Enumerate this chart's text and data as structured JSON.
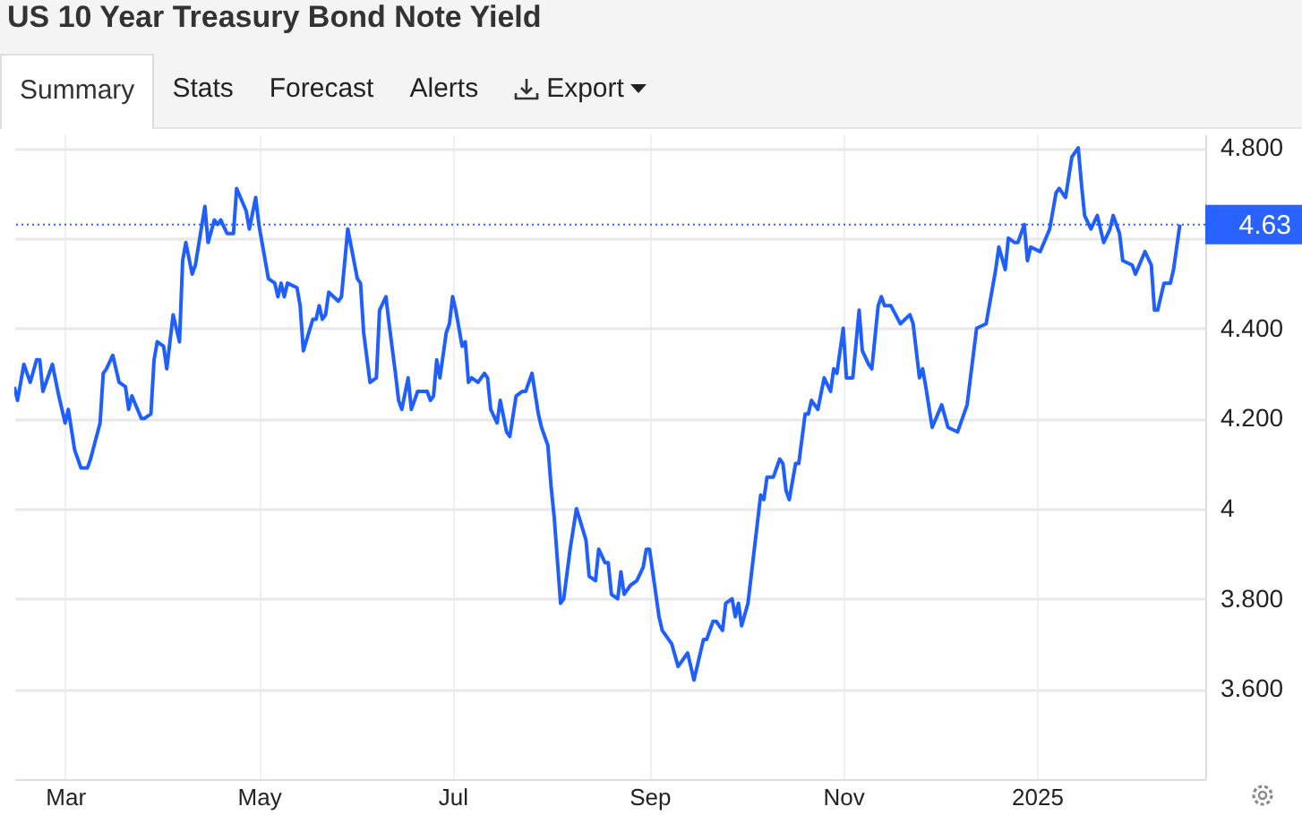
{
  "chart_data": {
    "type": "line",
    "title": "US 10 Year Treasury Bond Note Yield",
    "annotations": [
      "Summary",
      "Stats",
      "Forecast",
      "Alerts",
      "Export"
    ],
    "x": [
      "2024-02-14",
      "2024-02-15",
      "2024-02-17",
      "2024-02-19",
      "2024-02-21",
      "2024-02-22",
      "2024-02-23",
      "2024-02-26",
      "2024-02-28",
      "2024-03-01",
      "2024-03-02",
      "2024-03-04",
      "2024-03-06",
      "2024-03-08",
      "2024-03-09",
      "2024-03-12",
      "2024-03-13",
      "2024-03-14",
      "2024-03-16",
      "2024-03-18",
      "2024-03-20",
      "2024-03-21",
      "2024-03-22",
      "2024-03-25",
      "2024-03-26",
      "2024-03-28",
      "2024-03-29",
      "2024-03-30",
      "2024-04-01",
      "2024-04-02",
      "2024-04-04",
      "2024-04-06",
      "2024-04-07",
      "2024-04-08",
      "2024-04-10",
      "2024-04-11",
      "2024-04-14",
      "2024-04-15",
      "2024-04-17",
      "2024-04-18",
      "2024-04-19",
      "2024-04-21",
      "2024-04-23",
      "2024-04-24",
      "2024-04-27",
      "2024-04-28",
      "2024-04-30",
      "2024-05-01",
      "2024-05-04",
      "2024-05-06",
      "2024-05-07",
      "2024-05-08",
      "2024-05-09",
      "2024-05-10",
      "2024-05-13",
      "2024-05-14",
      "2024-05-15",
      "2024-05-18",
      "2024-05-19",
      "2024-05-20",
      "2024-05-21",
      "2024-05-22",
      "2024-05-23",
      "2024-05-26",
      "2024-05-27",
      "2024-05-29",
      "2024-06-01",
      "2024-06-02",
      "2024-06-03",
      "2024-06-05",
      "2024-06-07",
      "2024-06-08",
      "2024-06-10",
      "2024-06-11",
      "2024-06-13",
      "2024-06-14",
      "2024-06-15",
      "2024-06-17",
      "2024-06-18",
      "2024-06-20",
      "2024-06-23",
      "2024-06-24",
      "2024-06-25",
      "2024-06-26",
      "2024-06-27",
      "2024-06-29",
      "2024-06-30",
      "2024-07-01",
      "2024-07-02",
      "2024-07-04",
      "2024-07-05",
      "2024-07-06",
      "2024-07-07",
      "2024-07-09",
      "2024-07-11",
      "2024-07-12",
      "2024-07-13",
      "2024-07-15",
      "2024-07-16",
      "2024-07-18",
      "2024-07-19",
      "2024-07-21",
      "2024-07-23",
      "2024-07-24",
      "2024-07-26",
      "2024-07-28",
      "2024-07-29",
      "2024-07-31",
      "2024-08-01",
      "2024-08-02",
      "2024-08-04",
      "2024-08-05",
      "2024-08-07",
      "2024-08-09",
      "2024-08-12",
      "2024-08-13",
      "2024-08-15",
      "2024-08-16",
      "2024-08-18",
      "2024-08-19",
      "2024-08-20",
      "2024-08-22",
      "2024-08-23",
      "2024-08-24",
      "2024-08-26",
      "2024-08-28",
      "2024-08-30",
      "2024-08-31",
      "2024-09-01",
      "2024-09-04",
      "2024-09-05",
      "2024-09-07",
      "2024-09-08",
      "2024-09-10",
      "2024-09-11",
      "2024-09-13",
      "2024-09-14",
      "2024-09-15",
      "2024-09-18",
      "2024-09-19",
      "2024-09-21",
      "2024-09-22",
      "2024-09-24",
      "2024-09-25",
      "2024-09-27",
      "2024-09-28",
      "2024-09-29",
      "2024-09-30",
      "2024-10-02",
      "2024-10-03",
      "2024-10-05",
      "2024-10-06",
      "2024-10-07",
      "2024-10-08",
      "2024-10-10",
      "2024-10-12",
      "2024-10-13",
      "2024-10-14",
      "2024-10-15",
      "2024-10-17",
      "2024-10-18",
      "2024-10-20",
      "2024-10-21",
      "2024-10-22",
      "2024-10-24",
      "2024-10-26",
      "2024-10-28",
      "2024-10-29",
      "2024-10-30",
      "2024-11-01",
      "2024-11-02",
      "2024-11-04",
      "2024-11-06",
      "2024-11-07",
      "2024-11-09",
      "2024-11-10",
      "2024-11-12",
      "2024-11-13",
      "2024-11-14",
      "2024-11-16",
      "2024-11-19",
      "2024-11-22",
      "2024-11-23",
      "2024-11-25",
      "2024-11-26",
      "2024-11-27",
      "2024-11-29",
      "2024-12-02",
      "2024-12-04",
      "2024-12-07",
      "2024-12-10",
      "2024-12-13",
      "2024-12-16",
      "2024-12-19",
      "2024-12-20",
      "2024-12-22",
      "2024-12-23",
      "2024-12-25",
      "2024-12-26",
      "2024-12-28",
      "2024-12-29",
      "2024-12-30",
      "2025-01-02",
      "2025-01-05",
      "2025-01-07",
      "2025-01-08",
      "2025-01-10",
      "2025-01-12",
      "2025-01-14",
      "2025-01-15",
      "2025-01-16",
      "2025-01-18",
      "2025-01-20",
      "2025-01-22",
      "2025-01-24",
      "2025-01-25",
      "2025-01-27",
      "2025-01-28",
      "2025-01-31",
      "2025-02-01",
      "2025-02-04",
      "2025-02-06",
      "2025-02-07",
      "2025-02-08",
      "2025-02-10",
      "2025-02-12",
      "2025-02-13",
      "2025-02-15"
    ],
    "series": [
      {
        "color": "#1f5eff",
        "values": [
          4.27,
          4.24,
          4.32,
          4.28,
          4.33,
          4.33,
          4.26,
          4.32,
          4.25,
          4.19,
          4.22,
          4.13,
          4.09,
          4.09,
          4.11,
          4.19,
          4.3,
          4.31,
          4.34,
          4.28,
          4.27,
          4.22,
          4.25,
          4.2,
          4.2,
          4.21,
          4.33,
          4.37,
          4.36,
          4.31,
          4.43,
          4.37,
          4.55,
          4.59,
          4.52,
          4.54,
          4.67,
          4.59,
          4.64,
          4.63,
          4.64,
          4.61,
          4.61,
          4.71,
          4.66,
          4.62,
          4.69,
          4.63,
          4.51,
          4.5,
          4.47,
          4.5,
          4.47,
          4.5,
          4.49,
          4.45,
          4.35,
          4.42,
          4.42,
          4.45,
          4.42,
          4.43,
          4.48,
          4.46,
          4.47,
          4.62,
          4.51,
          4.5,
          4.39,
          4.28,
          4.29,
          4.44,
          4.47,
          4.41,
          4.3,
          4.24,
          4.22,
          4.29,
          4.22,
          4.26,
          4.26,
          4.24,
          4.25,
          4.33,
          4.29,
          4.39,
          4.41,
          4.47,
          4.44,
          4.36,
          4.37,
          4.28,
          4.29,
          4.28,
          4.3,
          4.29,
          4.22,
          4.19,
          4.24,
          4.17,
          4.16,
          4.25,
          4.26,
          4.26,
          4.3,
          4.21,
          4.18,
          4.14,
          4.05,
          3.98,
          3.79,
          3.8,
          3.91,
          4.0,
          3.93,
          3.85,
          3.84,
          3.91,
          3.88,
          3.88,
          3.81,
          3.8,
          3.86,
          3.81,
          3.83,
          3.84,
          3.87,
          3.91,
          3.91,
          3.76,
          3.73,
          3.71,
          3.7,
          3.65,
          3.66,
          3.68,
          3.65,
          3.62,
          3.71,
          3.71,
          3.75,
          3.75,
          3.73,
          3.79,
          3.8,
          3.76,
          3.79,
          3.74,
          3.79,
          3.85,
          3.97,
          4.03,
          4.02,
          4.07,
          4.07,
          4.11,
          4.1,
          4.04,
          4.02,
          4.1,
          4.1,
          4.21,
          4.21,
          4.24,
          4.22,
          4.29,
          4.26,
          4.31,
          4.3,
          4.4,
          4.29,
          4.29,
          4.44,
          4.35,
          4.32,
          4.31,
          4.45,
          4.47,
          4.45,
          4.45,
          4.41,
          4.43,
          4.41,
          4.29,
          4.31,
          4.27,
          4.18,
          4.23,
          4.18,
          4.17,
          4.23,
          4.4,
          4.41,
          4.53,
          4.58,
          4.53,
          4.6,
          4.59,
          4.59,
          4.63,
          4.55,
          4.58,
          4.57,
          4.62,
          4.7,
          4.71,
          4.69,
          4.78,
          4.8,
          4.72,
          4.65,
          4.62,
          4.65,
          4.59,
          4.62,
          4.65,
          4.61,
          4.55,
          4.54,
          4.52,
          4.57,
          4.54,
          4.44,
          4.44,
          4.5,
          4.5,
          4.53,
          4.63
        ]
      }
    ],
    "xlim": [
      "2024-02-14",
      "2025-02-23"
    ],
    "xticks": [
      {
        "value": "2024-03-01",
        "label": "Mar"
      },
      {
        "value": "2024-05-01",
        "label": "May"
      },
      {
        "value": "2024-07-01",
        "label": "Jul"
      },
      {
        "value": "2024-09-01",
        "label": "Sep"
      },
      {
        "value": "2024-11-01",
        "label": "Nov"
      },
      {
        "value": "2025-01-01",
        "label": "2025"
      }
    ],
    "ylim": [
      3.4,
      4.83
    ],
    "yticks": [
      {
        "value": 3.6,
        "label": "3.600"
      },
      {
        "value": 3.8,
        "label": "3.800"
      },
      {
        "value": 4,
        "label": "4"
      },
      {
        "value": 4.2,
        "label": "4.200"
      },
      {
        "value": 4.4,
        "label": "4.400"
      },
      {
        "value": 4.6,
        "label": null
      },
      {
        "value": 4.8,
        "label": "4.800"
      }
    ],
    "ref_lines": [
      {
        "axis": "y",
        "value": 4.63,
        "label": "4.63",
        "color": "#2962ff",
        "line_style": "dotted"
      }
    ],
    "grid": true
  }
}
